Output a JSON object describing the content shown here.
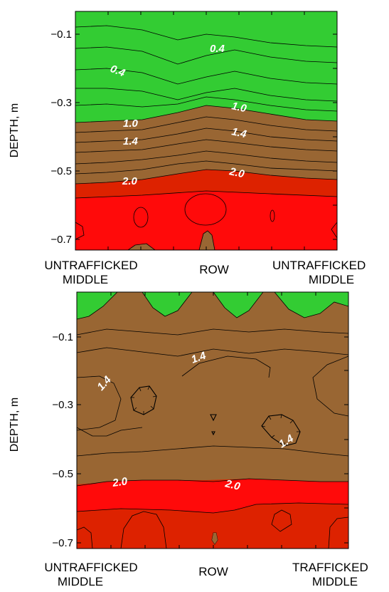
{
  "chart_data": [
    {
      "type": "contour",
      "ylabel": "DEPTH, m",
      "ylim": [
        -0.75,
        -0.02
      ],
      "y_ticks": [
        "−0.1",
        "−0.3",
        "−0.5",
        "−0.7"
      ],
      "x_labels": [
        {
          "line1": "UNTRAFFICKED",
          "line2": "MIDDLE"
        },
        {
          "line1": "ROW",
          "line2": ""
        },
        {
          "line1": "UNTRAFFICKED",
          "line2": "MIDDLE"
        }
      ],
      "contour_labels": [
        "0.4",
        "0.4",
        "1.0",
        "1.0",
        "1.4",
        "1.4",
        "2.0",
        "2.0"
      ],
      "bands": [
        {
          "range": "< 1.0",
          "color": "#33cc33"
        },
        {
          "range": "1.0 – 2.0",
          "color": "#996633"
        },
        {
          "range": "> 2.0",
          "color": "#dd2200"
        }
      ]
    },
    {
      "type": "contour",
      "ylabel": "DEPTH, m",
      "ylim": [
        -0.75,
        -0.02
      ],
      "y_ticks": [
        "−0.1",
        "−0.3",
        "−0.5",
        "−0.7"
      ],
      "x_labels": [
        {
          "line1": "UNTRAFFICKED",
          "line2": "MIDDLE"
        },
        {
          "line1": "ROW",
          "line2": ""
        },
        {
          "line1": "TRAFFICKED",
          "line2": "MIDDLE"
        }
      ],
      "contour_labels": [
        "1.4",
        "1.4",
        "1.4",
        "2.0",
        "2.0"
      ],
      "bands": [
        {
          "range": "< 1.0",
          "color": "#33cc33"
        },
        {
          "range": "1.0 – 2.0",
          "color": "#996633"
        },
        {
          "range": "> 2.0",
          "color": "#dd2200"
        }
      ]
    }
  ]
}
